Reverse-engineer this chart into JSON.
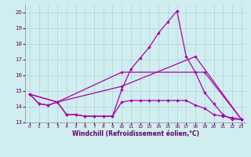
{
  "xlabel": "Windchill (Refroidissement éolien,°C)",
  "xlim": [
    -0.5,
    23.5
  ],
  "ylim": [
    13.0,
    20.5
  ],
  "yticks": [
    13,
    14,
    15,
    16,
    17,
    18,
    19,
    20
  ],
  "xticks": [
    0,
    1,
    2,
    3,
    4,
    5,
    6,
    7,
    8,
    9,
    10,
    11,
    12,
    13,
    14,
    15,
    16,
    17,
    18,
    19,
    20,
    21,
    22,
    23
  ],
  "bg_color": "#d0eef0",
  "line_color": "#aa00aa",
  "line1_x": [
    0,
    1,
    2,
    3,
    4,
    5,
    6,
    7,
    8,
    9,
    10,
    11,
    12,
    13,
    14,
    15,
    16,
    17,
    18,
    19,
    20,
    21,
    22,
    23
  ],
  "line1_y": [
    14.8,
    14.2,
    14.1,
    14.3,
    13.5,
    13.5,
    13.4,
    13.4,
    13.4,
    13.4,
    14.3,
    14.4,
    14.4,
    14.4,
    14.4,
    14.4,
    14.4,
    14.4,
    14.1,
    13.9,
    13.5,
    13.4,
    13.3,
    13.2
  ],
  "line2_x": [
    0,
    1,
    2,
    3,
    4,
    5,
    6,
    7,
    8,
    9,
    10,
    11,
    12,
    13,
    14,
    15,
    16,
    17,
    18,
    19,
    20,
    21,
    22,
    23
  ],
  "line2_y": [
    14.8,
    14.2,
    14.1,
    14.3,
    13.5,
    13.5,
    13.4,
    13.4,
    13.4,
    13.4,
    15.1,
    16.4,
    17.1,
    17.8,
    18.7,
    19.4,
    20.1,
    17.2,
    16.2,
    14.9,
    14.2,
    13.5,
    13.2,
    13.2
  ],
  "line3_x": [
    0,
    3,
    10,
    18,
    23
  ],
  "line3_y": [
    14.8,
    14.3,
    15.3,
    17.2,
    13.2
  ],
  "line4_x": [
    0,
    3,
    10,
    19,
    23
  ],
  "line4_y": [
    14.8,
    14.3,
    16.2,
    16.2,
    13.2
  ]
}
